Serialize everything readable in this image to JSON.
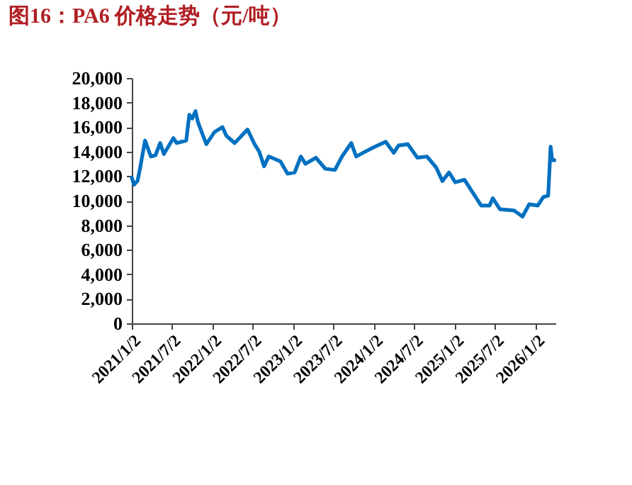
{
  "chart_data": {
    "type": "line",
    "title": "图16：PA6 价格走势（元/吨）",
    "x": [
      "2021-01-02",
      "2021-01-12",
      "2021-01-28",
      "2021-02-09",
      "2021-03-03",
      "2021-03-29",
      "2021-04-19",
      "2021-05-10",
      "2021-05-27",
      "2021-07-09",
      "2021-07-24",
      "2021-09-05",
      "2021-09-19",
      "2021-10-02",
      "2021-10-17",
      "2021-10-28",
      "2021-11-18",
      "2021-12-05",
      "2022-01-11",
      "2022-02-16",
      "2022-03-05",
      "2022-04-12",
      "2022-06-09",
      "2022-07-11",
      "2022-08-01",
      "2022-08-23",
      "2022-09-13",
      "2022-11-05",
      "2022-12-07",
      "2023-01-08",
      "2023-02-05",
      "2023-02-26",
      "2023-04-14",
      "2023-05-27",
      "2023-07-09",
      "2023-08-10",
      "2023-09-21",
      "2023-10-13",
      "2023-11-24",
      "2024-01-06",
      "2024-02-24",
      "2024-03-31",
      "2024-04-22",
      "2024-06-03",
      "2024-07-16",
      "2024-08-28",
      "2024-10-09",
      "2024-11-06",
      "2024-12-06",
      "2025-01-03",
      "2025-02-14",
      "2025-03-18",
      "2025-04-30",
      "2025-06-07",
      "2025-06-22",
      "2025-07-24",
      "2025-09-26",
      "2025-11-03",
      "2025-12-03",
      "2026-01-11",
      "2026-02-05",
      "2026-02-27",
      "2026-03-10",
      "2026-03-17",
      "2026-03-27"
    ],
    "series": [
      {
        "color": "#0070c0",
        "values": [
          11900,
          11300,
          11600,
          12700,
          14900,
          13600,
          13700,
          14700,
          13800,
          15100,
          14700,
          14900,
          17000,
          16700,
          17300,
          16400,
          15400,
          14600,
          15600,
          16000,
          15300,
          14700,
          15800,
          14600,
          14000,
          12800,
          13600,
          13200,
          12200,
          12300,
          13600,
          13000,
          13500,
          12600,
          12500,
          13600,
          14700,
          13600,
          14000,
          14400,
          14800,
          13900,
          14500,
          14600,
          13500,
          13600,
          12700,
          11600,
          12300,
          11500,
          11700,
          10800,
          9600,
          9600,
          10200,
          9300,
          9200,
          8700,
          9700,
          9600,
          10300,
          10400,
          14400,
          13300,
          13300
        ]
      }
    ],
    "xlim": [
      "2021-01-02",
      "2026-04-01"
    ],
    "xticks": [
      {
        "value": "2021-01-02",
        "label": "2021/1/2"
      },
      {
        "value": "2021-07-02",
        "label": "2021/7/2"
      },
      {
        "value": "2022-01-02",
        "label": "2022/1/2"
      },
      {
        "value": "2022-07-02",
        "label": "2022/7/2"
      },
      {
        "value": "2023-01-02",
        "label": "2023/1/2"
      },
      {
        "value": "2023-07-02",
        "label": "2023/7/2"
      },
      {
        "value": "2024-01-02",
        "label": "2024/1/2"
      },
      {
        "value": "2024-07-02",
        "label": "2024/7/2"
      },
      {
        "value": "2025-01-02",
        "label": "2025/1/2"
      },
      {
        "value": "2025-07-02",
        "label": "2025/7/2"
      },
      {
        "value": "2026-01-02",
        "label": "2026/1/2"
      }
    ],
    "ylim": [
      0,
      20000
    ],
    "yticks": [
      0,
      {
        "value": 2000,
        "label": "2,000"
      },
      {
        "value": 4000,
        "label": "4,000"
      },
      {
        "value": 6000,
        "label": "6,000"
      },
      {
        "value": 8000,
        "label": "8,000"
      },
      {
        "value": 10000,
        "label": "10,000"
      },
      {
        "value": 12000,
        "label": "12,000"
      },
      {
        "value": 14000,
        "label": "14,000"
      },
      {
        "value": 16000,
        "label": "16,000"
      },
      {
        "value": 18000,
        "label": "18,000"
      },
      {
        "value": 20000,
        "label": "20,000"
      }
    ],
    "grid": false,
    "marker": "none",
    "line_style": "solid"
  }
}
